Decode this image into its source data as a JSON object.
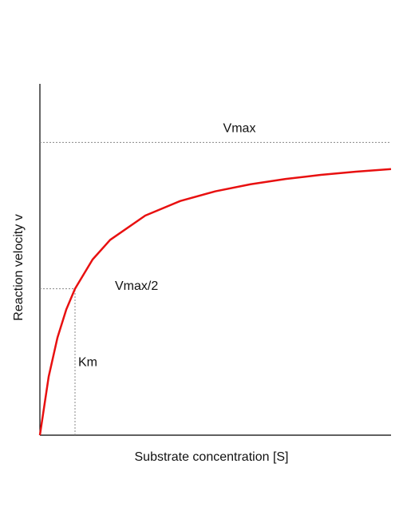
{
  "chart_data": {
    "type": "line",
    "x_label": "Substrate concentration [S]",
    "y_label": "Reaction velocity v",
    "x": [
      0,
      0.25,
      0.5,
      0.75,
      1,
      1.5,
      2,
      3,
      4,
      5,
      6,
      7,
      8,
      9,
      10
    ],
    "series": [
      {
        "color": "#e81010",
        "values": [
          0,
          0.2,
          0.333,
          0.429,
          0.5,
          0.6,
          0.667,
          0.75,
          0.8,
          0.833,
          0.857,
          0.875,
          0.889,
          0.9,
          0.909
        ]
      }
    ],
    "xlim": [
      0,
      10
    ],
    "ylim": [
      0,
      1.2
    ],
    "annotations": [
      {
        "text": "Vmax",
        "y": 1
      },
      {
        "text": "Vmax/2",
        "y": 0.5,
        "x_end": 1
      },
      {
        "text": "Km",
        "x": 1,
        "y_end": 0.5
      }
    ]
  }
}
